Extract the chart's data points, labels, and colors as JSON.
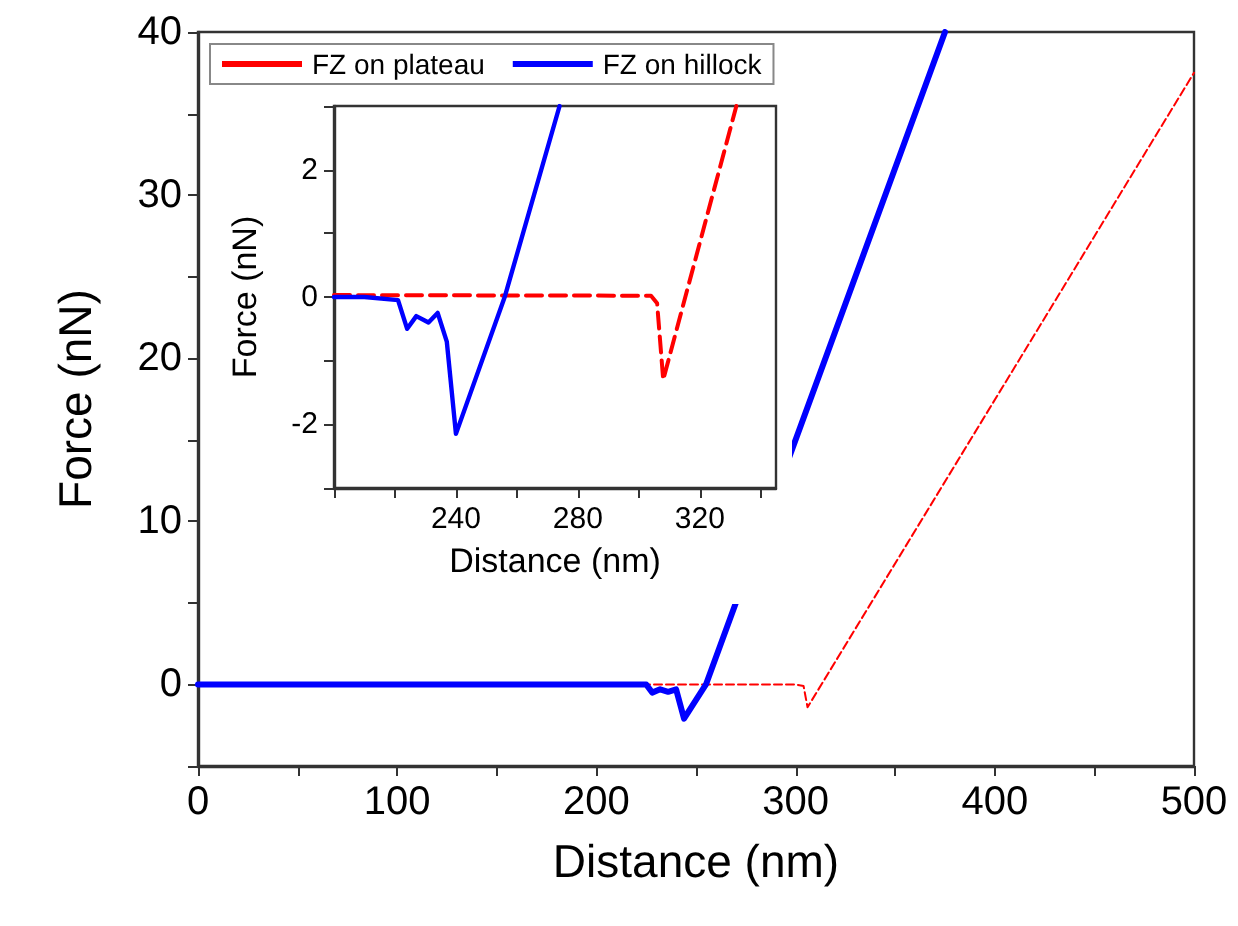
{
  "chart_data": [
    {
      "type": "line",
      "xlabel": "Distance (nm)",
      "ylabel": "Force (nN)",
      "xlim": [
        0,
        500
      ],
      "ylim": [
        -5,
        40
      ],
      "xticks": [
        0,
        {
          "value": 50,
          "label": null
        },
        100,
        {
          "value": 150,
          "label": null
        },
        200,
        {
          "value": 250,
          "label": null
        },
        300,
        {
          "value": 350,
          "label": null
        },
        400,
        {
          "value": 450,
          "label": null
        },
        500
      ],
      "yticks": [
        {
          "value": -5,
          "label": null
        },
        0,
        {
          "value": 5,
          "label": null
        },
        10,
        {
          "value": 15,
          "label": null
        },
        20,
        {
          "value": 25,
          "label": null
        },
        30,
        {
          "value": 35,
          "label": null
        },
        40
      ],
      "legend": "top left",
      "marker": "none",
      "grid": false,
      "series": [
        {
          "name": "FZ on plateau",
          "color": "#ff0000",
          "line_style": "dashed",
          "x": [
            0,
            300,
            304,
            306,
            500
          ],
          "values": [
            0,
            0,
            -0.1,
            -1.4,
            37.5
          ]
        },
        {
          "name": "FZ on hillock",
          "color": "#0000ff",
          "line_style": "solid",
          "x": [
            0,
            215,
            225,
            228,
            232,
            236,
            240,
            244,
            255,
            375
          ],
          "values": [
            0,
            0,
            0,
            -0.5,
            -0.3,
            -0.45,
            -0.3,
            -2.1,
            0,
            40
          ]
        }
      ]
    },
    {
      "type": "line",
      "xlabel": "Distance (nm)",
      "ylabel": "Force (nN)",
      "xlim": [
        200,
        345
      ],
      "ylim": [
        -3,
        3
      ],
      "xticks": [
        {
          "value": 200,
          "label": null
        },
        {
          "value": 220,
          "label": null
        },
        240,
        {
          "value": 260,
          "label": null
        },
        280,
        {
          "value": 300,
          "label": null
        },
        320,
        {
          "value": 340,
          "label": null
        }
      ],
      "yticks": [
        {
          "value": -3,
          "label": null
        },
        -2,
        {
          "value": -1,
          "label": null
        },
        0,
        {
          "value": 1,
          "label": null
        },
        2,
        {
          "value": 3,
          "label": null
        }
      ],
      "marker": "none",
      "grid": false,
      "series": [
        {
          "color": "#ff0000",
          "line_style": "dashed",
          "x": [
            200,
            304,
            306,
            308,
            332
          ],
          "values": [
            0.03,
            0.02,
            -0.1,
            -1.3,
            3
          ]
        },
        {
          "color": "#0000ff",
          "line_style": "solid",
          "x": [
            200,
            210,
            221,
            224,
            227,
            231,
            234,
            237,
            240,
            256,
            274
          ],
          "values": [
            0,
            0,
            -0.05,
            -0.5,
            -0.3,
            -0.4,
            -0.25,
            -0.7,
            -2.15,
            0,
            3
          ]
        }
      ]
    }
  ]
}
